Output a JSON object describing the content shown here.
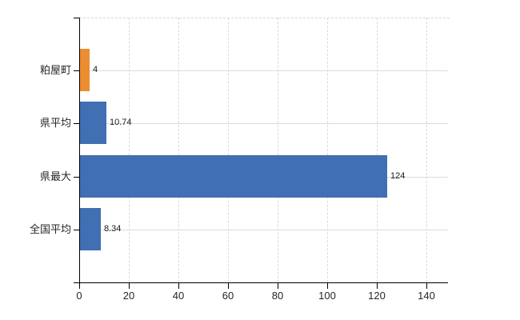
{
  "chart": {
    "title": "",
    "colors": {
      "background": "#ffffff",
      "bar_default": "#406fb3",
      "bar_highlight": "#ec8d32",
      "grid": "#d9d9d9",
      "axis": "#000000",
      "text": "#262626",
      "value_text": "#1a1a1a"
    }
  },
  "chart_data": {
    "type": "bar",
    "orientation": "horizontal",
    "categories": [
      "粕屋町",
      "県平均",
      "県最大",
      "全国平均"
    ],
    "values": [
      4,
      10.74,
      124,
      8.34
    ],
    "value_labels": [
      "4",
      "10.74",
      "124",
      "8.34"
    ],
    "bar_colors": [
      "#ec8d32",
      "#406fb3",
      "#406fb3",
      "#406fb3"
    ],
    "title": "",
    "xlabel": "",
    "ylabel": "",
    "xlim": [
      0,
      140
    ],
    "x_ticks": [
      0,
      20,
      40,
      60,
      80,
      100,
      120,
      140
    ],
    "grid": true,
    "legend": false
  }
}
